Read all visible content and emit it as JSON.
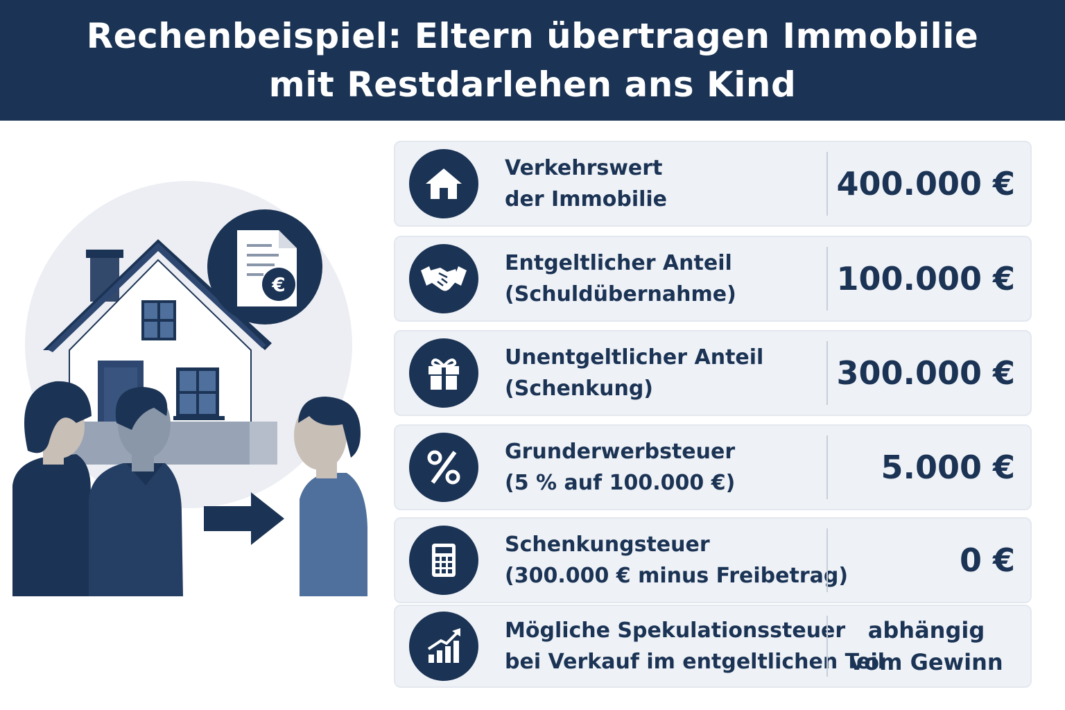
{
  "header": {
    "title_line1": "Rechenbeispiel: Eltern übertragen Immobilie",
    "title_line2": "mit Restdarlehen ans Kind"
  },
  "colors": {
    "navy": "#1b3354",
    "row_bg": "#eef1f6",
    "accent_blue": "#4f6f9c"
  },
  "illustration": {
    "document_badge_symbol": "€"
  },
  "rows": [
    {
      "icon": "house-icon",
      "label_line1": "Verkehrswert",
      "label_line2": "der Immobilie",
      "value": "400.000 €"
    },
    {
      "icon": "handshake-icon",
      "label_line1": "Entgeltlicher Anteil",
      "label_line2": "(Schuldübernahme)",
      "value": "100.000 €"
    },
    {
      "icon": "gift-icon",
      "label_line1": "Unentgeltlicher Anteil",
      "label_line2": "(Schenkung)",
      "value": "300.000 €"
    },
    {
      "icon": "percent-icon",
      "label_line1": "Grunderwerbsteuer",
      "label_line2": "(5 % auf 100.000 €)",
      "value": "5.000 €"
    },
    {
      "icon": "calculator-icon",
      "label_line1": "Schenkungsteuer",
      "label_line2": "(300.000 € minus Freibetrag)",
      "value": "0 €"
    },
    {
      "icon": "chart-growth-icon",
      "label_line1": "Mögliche Spekulationssteuer",
      "label_line2": "bei Verkauf im entgeltlichen Teil",
      "value_line1": "abhängig",
      "value_line2": "vom Gewinn"
    }
  ]
}
